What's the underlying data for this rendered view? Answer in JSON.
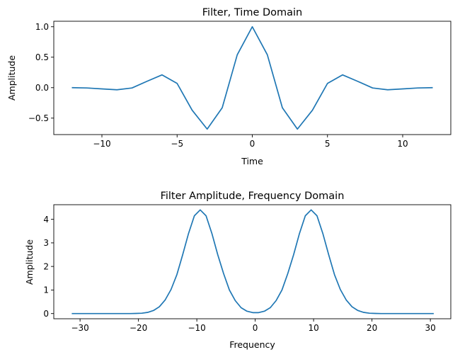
{
  "chart_data": [
    {
      "type": "line",
      "title": "Filter, Time Domain",
      "xlabel": "Time",
      "ylabel": "Amplitude",
      "xlim": [
        -13.2,
        13.2
      ],
      "ylim": [
        -0.77,
        1.09
      ],
      "xticks": [
        -10,
        -5,
        0,
        5,
        10
      ],
      "xtick_labels": [
        "−10",
        "−5",
        "0",
        "5",
        "10"
      ],
      "yticks": [
        -0.5,
        0.0,
        0.5,
        1.0
      ],
      "ytick_labels": [
        "−0.5",
        "0.0",
        "0.5",
        "1.0"
      ],
      "grid": false,
      "series": [
        {
          "color": "#1f77b4",
          "x": [
            -12,
            -11,
            -10,
            -9,
            -8,
            -7,
            -6,
            -5,
            -4,
            -3,
            -2,
            -1,
            0,
            1,
            2,
            3,
            4,
            5,
            6,
            7,
            8,
            9,
            10,
            11,
            12
          ],
          "y": [
            0.0,
            -0.005,
            -0.02,
            -0.035,
            -0.005,
            0.105,
            0.21,
            0.07,
            -0.37,
            -0.68,
            -0.33,
            0.54,
            1.0,
            0.54,
            -0.33,
            -0.68,
            -0.37,
            0.07,
            0.21,
            0.105,
            -0.005,
            -0.035,
            -0.02,
            -0.005,
            0.0
          ]
        }
      ]
    },
    {
      "type": "line",
      "title": "Filter Amplitude, Frequency Domain",
      "xlabel": "Frequency",
      "ylabel": "Amplitude",
      "xlim": [
        -34.5,
        33.5
      ],
      "ylim": [
        -0.22,
        4.62
      ],
      "xticks": [
        -30,
        -20,
        -10,
        0,
        10,
        20,
        30
      ],
      "xtick_labels": [
        "−30",
        "−20",
        "−10",
        "0",
        "10",
        "20",
        "30"
      ],
      "yticks": [
        0,
        1,
        2,
        3,
        4
      ],
      "ytick_labels": [
        "0",
        "1",
        "2",
        "3",
        "4"
      ],
      "grid": false,
      "series": [
        {
          "color": "#1f77b4",
          "x": [
            -31.42,
            -30.42,
            -29.42,
            -28.42,
            -27.42,
            -26.42,
            -25.42,
            -24.42,
            -23.42,
            -22.42,
            -21.42,
            -20.42,
            -19.42,
            -18.42,
            -17.42,
            -16.42,
            -15.42,
            -14.42,
            -13.42,
            -12.42,
            -11.42,
            -10.42,
            -9.42,
            -8.42,
            -7.42,
            -6.42,
            -5.42,
            -4.42,
            -3.42,
            -2.42,
            -1.42,
            -0.42,
            0.58,
            1.58,
            2.58,
            3.58,
            4.58,
            5.58,
            6.58,
            7.58,
            8.58,
            9.58,
            10.58,
            11.58,
            12.58,
            13.58,
            14.58,
            15.58,
            16.58,
            17.58,
            18.58,
            19.58,
            20.58,
            21.58,
            22.58,
            23.58,
            24.58,
            25.58,
            26.58,
            27.58,
            28.58,
            29.58,
            30.58
          ],
          "y": [
            0.0,
            0.0,
            0.0,
            0.0,
            0.0,
            0.0,
            0.0,
            0.0,
            0.0,
            0.0,
            0.0,
            0.005,
            0.015,
            0.05,
            0.13,
            0.29,
            0.58,
            1.02,
            1.65,
            2.5,
            3.4,
            4.15,
            4.4,
            4.15,
            3.4,
            2.5,
            1.7,
            1.0,
            0.55,
            0.25,
            0.1,
            0.04,
            0.04,
            0.1,
            0.25,
            0.55,
            1.0,
            1.7,
            2.5,
            3.4,
            4.15,
            4.4,
            4.15,
            3.4,
            2.5,
            1.65,
            1.02,
            0.58,
            0.29,
            0.13,
            0.05,
            0.015,
            0.005,
            0.0,
            0.0,
            0.0,
            0.0,
            0.0,
            0.0,
            0.0,
            0.0,
            0.0,
            0.0
          ]
        }
      ]
    }
  ]
}
